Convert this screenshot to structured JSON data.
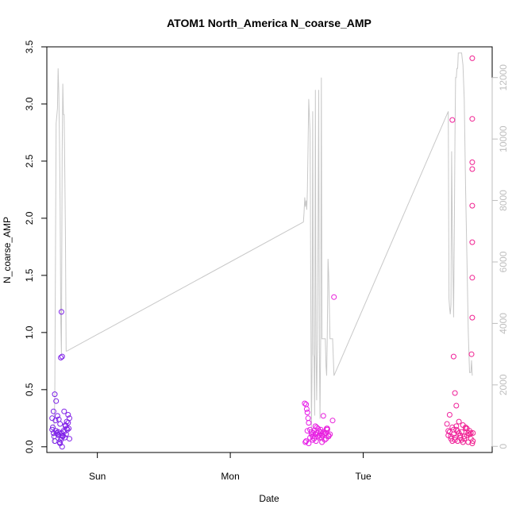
{
  "chart_data": {
    "type": "scatter",
    "title": "ATOM1 North_America N_coarse_AMP",
    "xlabel": "Date",
    "ylabel": "N_coarse_AMP",
    "x_ticks": [
      "Sun",
      "Mon",
      "Tue"
    ],
    "x_range_days": [
      -0.38,
      2.97
    ],
    "ylim": [
      -0.05,
      3.5
    ],
    "y_ticks": [
      "0.0",
      "0.5",
      "1.0",
      "1.5",
      "2.0",
      "2.5",
      "3.0",
      "3.5"
    ],
    "y2_range": [
      -200,
      13000
    ],
    "y2_ticks": [
      "0",
      "2000",
      "4000",
      "6000",
      "8000",
      "10000",
      "12000"
    ],
    "colors": {
      "points_start": "#7a1fe8",
      "points_mid": "#e61ee8",
      "points_end": "#f0208f",
      "line": "#c8c8c8",
      "right_axis": "#bebebe"
    },
    "point_clusters": [
      {
        "name": "",
        "x": [
          -0.34,
          -0.33,
          -0.32,
          -0.31,
          -0.3,
          -0.34,
          -0.29,
          -0.28,
          -0.27,
          -0.26,
          -0.25,
          -0.24,
          -0.23,
          -0.22,
          -0.21,
          -0.33,
          -0.31,
          -0.29,
          -0.27,
          -0.25,
          -0.23,
          -0.21,
          -0.32,
          -0.3,
          -0.28,
          -0.26,
          -0.24,
          -0.22,
          -0.335,
          -0.315,
          -0.295,
          -0.275,
          -0.255,
          -0.235,
          -0.215,
          -0.325,
          -0.305,
          -0.285,
          -0.265,
          -0.245,
          -0.225,
          -0.27,
          -0.275,
          -0.265
        ],
        "y": [
          0.25,
          0.31,
          0.46,
          0.4,
          0.27,
          0.15,
          0.24,
          0.2,
          0.12,
          0.1,
          0.31,
          0.18,
          0.22,
          0.28,
          0.25,
          0.12,
          0.14,
          0.1,
          0.08,
          0.13,
          0.16,
          0.07,
          0.05,
          0.11,
          0.03,
          0.09,
          0.19,
          0.21,
          0.17,
          0.23,
          0.13,
          0.06,
          0.14,
          0.11,
          0.16,
          0.09,
          0.12,
          0.04,
          0.0,
          0.08,
          0.15,
          1.18,
          0.78,
          0.79
        ]
      },
      {
        "name": "",
        "x": [
          1.56,
          1.57,
          1.58,
          1.59,
          1.6,
          1.61,
          1.62,
          1.63,
          1.64,
          1.65,
          1.66,
          1.67,
          1.68,
          1.69,
          1.7,
          1.71,
          1.72,
          1.73,
          1.74,
          1.75,
          1.57,
          1.59,
          1.61,
          1.63,
          1.65,
          1.67,
          1.69,
          1.71,
          1.73,
          1.58,
          1.6,
          1.62,
          1.64,
          1.66,
          1.68,
          1.7,
          1.72,
          1.74,
          1.565,
          1.575,
          1.585,
          1.625,
          1.645,
          1.665,
          1.685,
          1.705,
          1.725,
          1.77,
          1.78
        ],
        "y": [
          0.38,
          0.37,
          0.3,
          0.21,
          0.15,
          0.11,
          0.09,
          0.14,
          0.18,
          0.12,
          0.16,
          0.08,
          0.13,
          0.1,
          0.27,
          0.06,
          0.12,
          0.15,
          0.09,
          0.11,
          0.05,
          0.03,
          0.13,
          0.07,
          0.17,
          0.1,
          0.04,
          0.12,
          0.16,
          0.14,
          0.08,
          0.06,
          0.11,
          0.09,
          0.15,
          0.13,
          0.07,
          0.1,
          0.04,
          0.33,
          0.25,
          0.12,
          0.05,
          0.14,
          0.08,
          0.11,
          0.16,
          0.23,
          1.31
        ]
      },
      {
        "name": "",
        "x": [
          2.63,
          2.64,
          2.65,
          2.66,
          2.67,
          2.68,
          2.69,
          2.7,
          2.71,
          2.72,
          2.73,
          2.74,
          2.75,
          2.76,
          2.77,
          2.78,
          2.79,
          2.8,
          2.81,
          2.82,
          2.64,
          2.66,
          2.68,
          2.7,
          2.72,
          2.74,
          2.76,
          2.78,
          2.8,
          2.65,
          2.67,
          2.69,
          2.71,
          2.73,
          2.75,
          2.77,
          2.79,
          2.81,
          2.815,
          2.82,
          2.82,
          2.82,
          2.82,
          2.82,
          2.82,
          2.82,
          2.82,
          2.825,
          2.825,
          2.7,
          2.69,
          2.68,
          2.67
        ],
        "y": [
          0.2,
          0.14,
          0.28,
          0.09,
          0.17,
          0.11,
          0.06,
          0.15,
          0.05,
          0.22,
          0.08,
          0.13,
          0.19,
          0.07,
          0.16,
          0.1,
          0.04,
          0.14,
          0.12,
          0.03,
          0.1,
          0.07,
          0.15,
          0.18,
          0.12,
          0.06,
          0.09,
          0.16,
          0.11,
          0.13,
          0.05,
          0.08,
          0.14,
          0.1,
          0.04,
          0.17,
          0.12,
          0.07,
          0.81,
          1.13,
          1.48,
          1.79,
          2.11,
          2.43,
          2.49,
          2.87,
          3.4,
          0.12,
          0.05,
          0.36,
          0.47,
          0.79,
          2.86
        ]
      }
    ],
    "line_series": {
      "name": "",
      "axis": "right",
      "x": [
        -0.33,
        -0.32,
        -0.31,
        -0.3,
        -0.295,
        -0.29,
        -0.285,
        -0.28,
        -0.275,
        -0.27,
        -0.265,
        -0.26,
        -0.255,
        -0.25,
        -0.245,
        -0.24,
        -0.235,
        -0.23,
        1.55,
        1.555,
        1.56,
        1.565,
        1.57,
        1.575,
        1.58,
        1.585,
        1.59,
        1.6,
        1.605,
        1.61,
        1.615,
        1.62,
        1.625,
        1.63,
        1.635,
        1.64,
        1.645,
        1.65,
        1.655,
        1.66,
        1.665,
        1.67,
        1.675,
        1.68,
        1.685,
        1.69,
        1.695,
        1.7,
        1.705,
        1.71,
        1.715,
        1.72,
        1.725,
        1.73,
        1.735,
        1.74,
        1.745,
        1.75,
        1.755,
        1.76,
        1.765,
        1.77,
        1.78,
        2.64,
        2.645,
        2.65,
        2.655,
        2.66,
        2.665,
        2.67,
        2.675,
        2.68,
        2.685,
        2.69,
        2.695,
        2.7,
        2.705,
        2.71,
        2.715,
        2.72,
        2.73,
        2.74,
        2.75,
        2.76,
        2.77,
        2.78,
        2.79,
        2.8,
        2.81,
        2.815,
        2.82
      ],
      "y": [
        100,
        1500,
        10500,
        11000,
        12300,
        11500,
        10000,
        8000,
        4000,
        3000,
        9500,
        11800,
        10800,
        10800,
        9000,
        7000,
        3100,
        3100,
        7300,
        7600,
        8100,
        7800,
        8000,
        7700,
        8300,
        9800,
        11300,
        10200,
        5500,
        500,
        2600,
        10900,
        3000,
        2900,
        1000,
        11600,
        3200,
        1500,
        3400,
        6800,
        11600,
        3200,
        900,
        3600,
        12000,
        3500,
        3500,
        3500,
        3500,
        3500,
        3500,
        2600,
        2300,
        3700,
        6100,
        5600,
        4500,
        3500,
        3500,
        3500,
        3500,
        3500,
        2300,
        10900,
        4800,
        4500,
        4300,
        4600,
        9600,
        7100,
        5700,
        4200,
        7000,
        10000,
        12000,
        12000,
        12300,
        12300,
        12800,
        12800,
        12800,
        12800,
        12400,
        11300,
        8400,
        6100,
        3700,
        2400,
        2400,
        2800,
        2300
      ]
    }
  }
}
